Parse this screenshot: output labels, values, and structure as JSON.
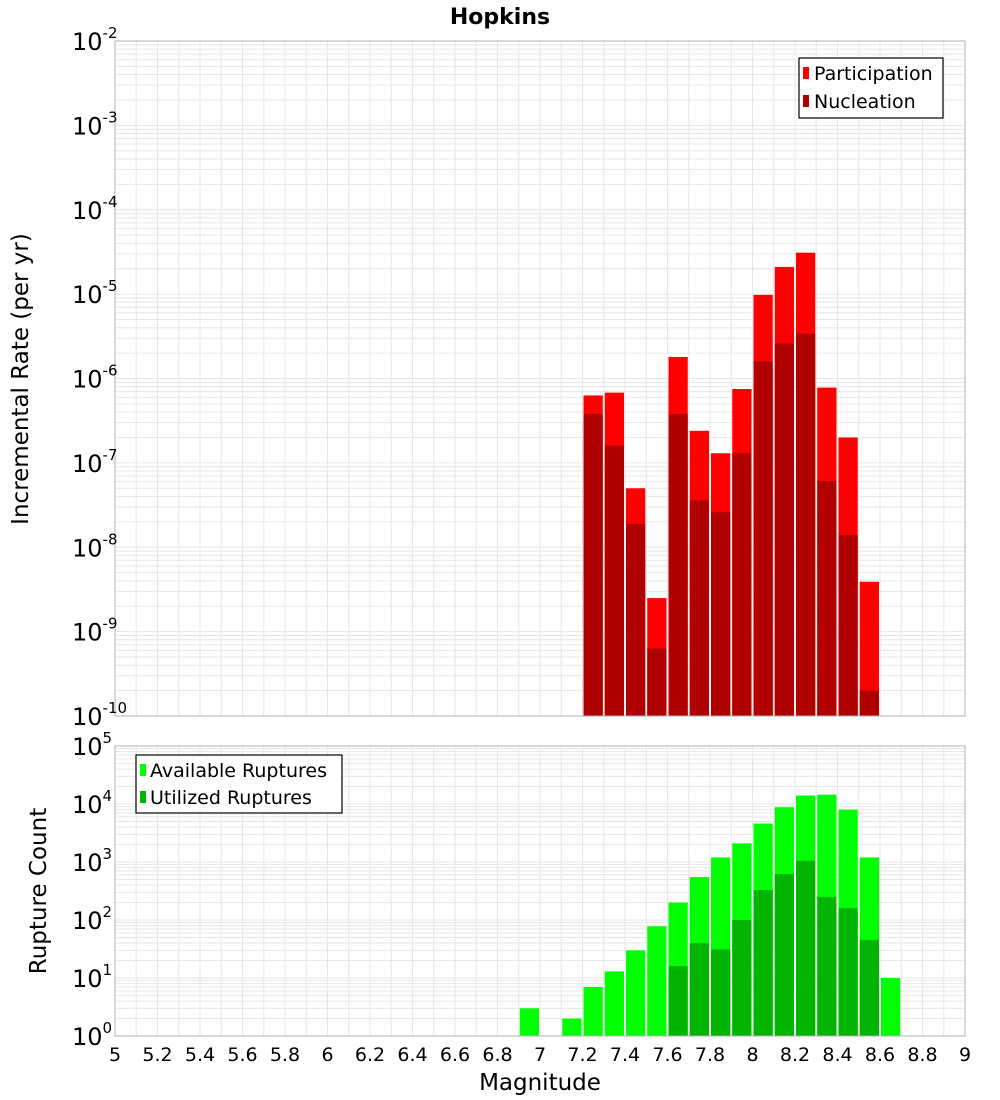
{
  "title": "Hopkins",
  "chart_data": [
    {
      "type": "bar",
      "name": "rate-panel",
      "ylabel": "Incremental Rate (per yr)",
      "yscale": "log",
      "ylim_exponents": [
        -10,
        -2
      ],
      "xlim": [
        5,
        9
      ],
      "bin_width": 0.1,
      "legend": {
        "position": "top-right",
        "entries": [
          "Participation",
          "Nucleation"
        ]
      },
      "series": [
        {
          "name": "Participation",
          "color": "#ff0000",
          "x": [
            7.25,
            7.35,
            7.45,
            7.55,
            7.65,
            7.75,
            7.85,
            7.95,
            8.05,
            8.15,
            8.25,
            8.35,
            8.45,
            8.55
          ],
          "values": [
            6.3e-07,
            6.8e-07,
            5e-08,
            2.5e-09,
            1.8e-06,
            2.4e-07,
            1.3e-07,
            7.5e-07,
            9.8e-06,
            2.1e-05,
            3.1e-05,
            7.8e-07,
            2e-07,
            3.9e-09
          ]
        },
        {
          "name": "Nucleation",
          "color": "#b00000",
          "x": [
            7.25,
            7.35,
            7.45,
            7.55,
            7.65,
            7.75,
            7.85,
            7.95,
            8.05,
            8.15,
            8.25,
            8.35,
            8.45,
            8.55
          ],
          "values": [
            3.8e-07,
            1.6e-07,
            1.9e-08,
            6.3e-10,
            3.8e-07,
            3.6e-08,
            2.6e-08,
            1.3e-07,
            1.6e-06,
            2.6e-06,
            3.4e-06,
            6.1e-08,
            1.4e-08,
            2e-10
          ]
        }
      ]
    },
    {
      "type": "bar",
      "name": "count-panel",
      "ylabel": "Rupture Count",
      "xlabel": "Magnitude",
      "yscale": "log",
      "ylim_exponents": [
        0,
        5
      ],
      "xlim": [
        5,
        9
      ],
      "bin_width": 0.1,
      "legend": {
        "position": "top-left",
        "entries": [
          "Available Ruptures",
          "Utilized Ruptures"
        ]
      },
      "series": [
        {
          "name": "Available Ruptures",
          "color": "#00ff00",
          "x": [
            6.95,
            7.15,
            7.25,
            7.35,
            7.45,
            7.55,
            7.65,
            7.75,
            7.85,
            7.95,
            8.05,
            8.15,
            8.25,
            8.35,
            8.45,
            8.55,
            8.65
          ],
          "values": [
            3,
            2,
            7,
            13,
            30,
            78,
            200,
            550,
            1200,
            2100,
            4600,
            8800,
            14000,
            14500,
            8000,
            1200,
            10
          ]
        },
        {
          "name": "Utilized Ruptures",
          "color": "#00b400",
          "x": [
            7.25,
            7.35,
            7.45,
            7.55,
            7.65,
            7.75,
            7.85,
            7.95,
            8.05,
            8.15,
            8.25,
            8.35,
            8.45,
            8.55,
            8.65
          ],
          "values": [
            1,
            1,
            1,
            1,
            16,
            40,
            31,
            100,
            330,
            620,
            1050,
            250,
            160,
            45,
            1
          ]
        }
      ]
    }
  ],
  "x_ticks": [
    "5",
    "5.2",
    "5.4",
    "5.6",
    "5.8",
    "6",
    "6.2",
    "6.4",
    "6.6",
    "6.8",
    "7",
    "7.2",
    "7.4",
    "7.6",
    "7.8",
    "8",
    "8.2",
    "8.4",
    "8.6",
    "8.8",
    "9"
  ],
  "top_y_ticks": [
    {
      "base": "10",
      "exp": "-10"
    },
    {
      "base": "10",
      "exp": "-9"
    },
    {
      "base": "10",
      "exp": "-8"
    },
    {
      "base": "10",
      "exp": "-7"
    },
    {
      "base": "10",
      "exp": "-6"
    },
    {
      "base": "10",
      "exp": "-5"
    },
    {
      "base": "10",
      "exp": "-4"
    },
    {
      "base": "10",
      "exp": "-3"
    },
    {
      "base": "10",
      "exp": "-2"
    }
  ],
  "bottom_y_ticks": [
    {
      "base": "10",
      "exp": "0"
    },
    {
      "base": "10",
      "exp": "1"
    },
    {
      "base": "10",
      "exp": "2"
    },
    {
      "base": "10",
      "exp": "3"
    },
    {
      "base": "10",
      "exp": "4"
    },
    {
      "base": "10",
      "exp": "5"
    }
  ]
}
